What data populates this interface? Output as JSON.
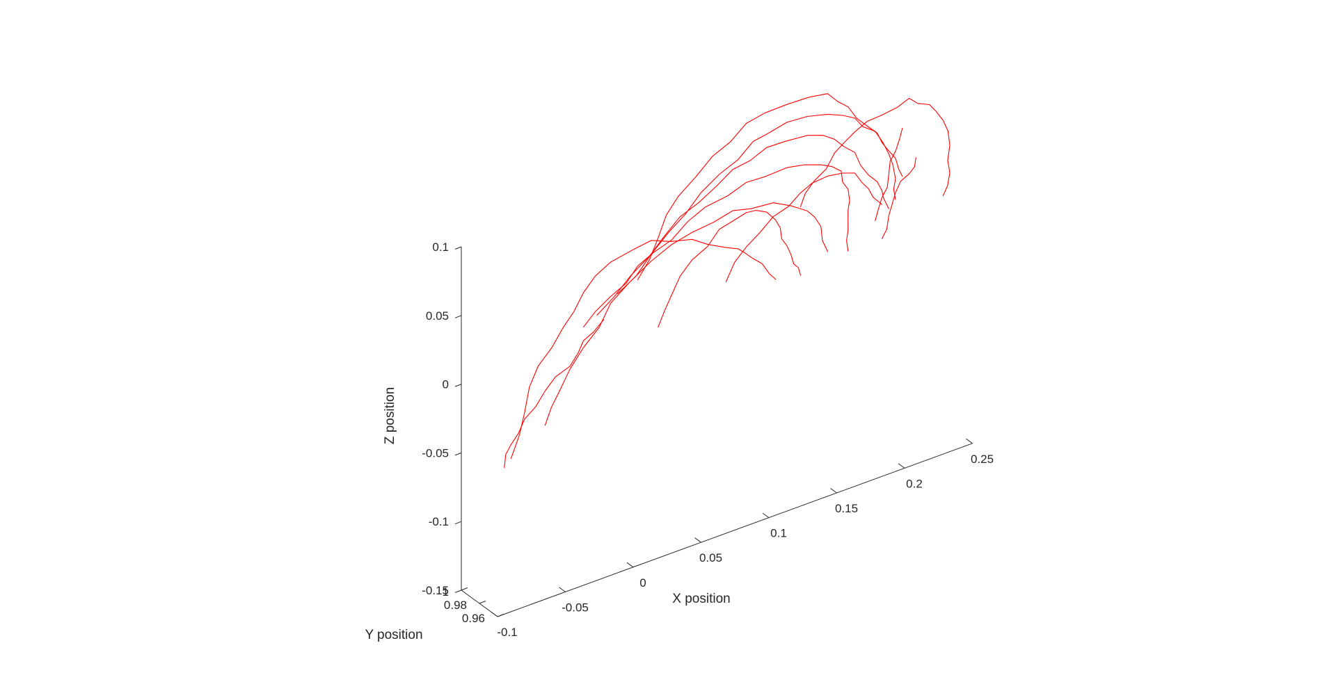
{
  "chart_data": {
    "type": "line",
    "projection": "3d",
    "xlabel": "X position",
    "ylabel": "Y position",
    "zlabel": "Z position",
    "x_ticks": [
      "-0.1",
      "-0.05",
      "0",
      "0.05",
      "0.1",
      "0.15",
      "0.2",
      "0.25"
    ],
    "y_ticks": [
      "1",
      "0.98",
      "0.96"
    ],
    "z_ticks": [
      "-0.15",
      "-0.1",
      "-0.05",
      "0",
      "0.05",
      "0.1"
    ],
    "xlim": [
      -0.1,
      0.25
    ],
    "ylim": [
      0.96,
      1
    ],
    "zlim": [
      -0.15,
      0.1
    ],
    "grid": false,
    "series_color": "#ff0000",
    "series": [
      {
        "points": [
          [
            -0.07,
            0.99,
            -0.06
          ],
          [
            -0.06,
            0.99,
            -0.03
          ],
          [
            -0.05,
            0.99,
            0.0
          ],
          [
            -0.035,
            0.985,
            0.025
          ],
          [
            -0.02,
            0.985,
            0.045
          ],
          [
            0.0,
            0.985,
            0.06
          ],
          [
            0.03,
            0.985,
            0.065
          ],
          [
            0.06,
            0.985,
            0.055
          ],
          [
            0.085,
            0.985,
            0.04
          ],
          [
            0.1,
            0.985,
            0.03
          ],
          [
            0.115,
            0.99,
            0.015
          ],
          [
            0.125,
            0.99,
            0.0
          ]
        ]
      },
      {
        "points": [
          [
            -0.045,
            0.99,
            -0.045
          ],
          [
            -0.035,
            0.99,
            -0.025
          ],
          [
            -0.02,
            0.985,
            0.005
          ],
          [
            0.0,
            0.985,
            0.03
          ],
          [
            0.03,
            0.985,
            0.05
          ],
          [
            0.06,
            0.985,
            0.06
          ],
          [
            0.09,
            0.985,
            0.065
          ],
          [
            0.12,
            0.985,
            0.06
          ],
          [
            0.145,
            0.985,
            0.045
          ],
          [
            0.155,
            0.985,
            0.03
          ],
          [
            0.16,
            0.985,
            0.01
          ]
        ]
      },
      {
        "points": [
          [
            -0.075,
            0.99,
            -0.065
          ],
          [
            -0.07,
            0.99,
            -0.05
          ],
          [
            -0.06,
            0.99,
            -0.035
          ],
          [
            -0.045,
            0.99,
            -0.02
          ],
          [
            -0.03,
            0.985,
            -0.005
          ],
          [
            -0.02,
            0.985,
            0.01
          ],
          [
            -0.005,
            0.985,
            0.02
          ]
        ]
      },
      {
        "points": [
          [
            -0.02,
            0.985,
            0.02
          ],
          [
            0.0,
            0.985,
            0.035
          ],
          [
            0.02,
            0.985,
            0.05
          ],
          [
            0.045,
            0.985,
            0.06
          ],
          [
            0.07,
            0.985,
            0.075
          ],
          [
            0.1,
            0.985,
            0.082
          ],
          [
            0.13,
            0.985,
            0.082
          ],
          [
            0.155,
            0.985,
            0.075
          ],
          [
            0.17,
            0.985,
            0.065
          ],
          [
            0.175,
            0.985,
            0.05
          ],
          [
            0.175,
            0.985,
            0.035
          ],
          [
            0.175,
            0.985,
            0.02
          ],
          [
            0.175,
            0.985,
            0.005
          ]
        ]
      },
      {
        "points": [
          [
            -0.01,
            0.985,
            0.025
          ],
          [
            0.015,
            0.985,
            0.045
          ],
          [
            0.04,
            0.985,
            0.065
          ],
          [
            0.065,
            0.985,
            0.08
          ],
          [
            0.09,
            0.985,
            0.095
          ],
          [
            0.115,
            0.985,
            0.102
          ],
          [
            0.145,
            0.985,
            0.1
          ],
          [
            0.165,
            0.985,
            0.09
          ],
          [
            0.18,
            0.985,
            0.075
          ],
          [
            0.19,
            0.985,
            0.055
          ],
          [
            0.2,
            0.985,
            0.04
          ],
          [
            0.205,
            0.985,
            0.025
          ]
        ]
      },
      {
        "points": [
          [
            0.005,
            0.985,
            0.035
          ],
          [
            0.03,
            0.985,
            0.055
          ],
          [
            0.055,
            0.985,
            0.075
          ],
          [
            0.08,
            0.985,
            0.095
          ],
          [
            0.105,
            0.985,
            0.11
          ],
          [
            0.13,
            0.985,
            0.115
          ],
          [
            0.16,
            0.985,
            0.11
          ],
          [
            0.18,
            0.985,
            0.1
          ],
          [
            0.195,
            0.985,
            0.085
          ],
          [
            0.205,
            0.985,
            0.065
          ],
          [
            0.21,
            0.985,
            0.045
          ],
          [
            0.21,
            0.985,
            0.03
          ]
        ]
      },
      {
        "points": [
          [
            0.02,
            0.985,
            0.04
          ],
          [
            0.035,
            0.985,
            0.065
          ],
          [
            0.05,
            0.985,
            0.09
          ],
          [
            0.075,
            0.985,
            0.11
          ],
          [
            0.1,
            0.985,
            0.125
          ],
          [
            0.13,
            0.985,
            0.128
          ],
          [
            0.16,
            0.985,
            0.125
          ],
          [
            0.175,
            0.985,
            0.11
          ],
          [
            0.19,
            0.985,
            0.09
          ],
          [
            0.2,
            0.985,
            0.075
          ],
          [
            0.21,
            0.985,
            0.06
          ],
          [
            0.215,
            0.985,
            0.045
          ]
        ]
      },
      {
        "points": [
          [
            0.035,
            0.985,
            0.0
          ],
          [
            0.045,
            0.985,
            0.02
          ],
          [
            0.06,
            0.985,
            0.04
          ],
          [
            0.08,
            0.985,
            0.055
          ],
          [
            0.1,
            0.985,
            0.06
          ],
          [
            0.115,
            0.985,
            0.055
          ],
          [
            0.125,
            0.985,
            0.04
          ],
          [
            0.13,
            0.985,
            0.025
          ],
          [
            0.135,
            0.985,
            0.01
          ],
          [
            0.14,
            0.985,
            0.0
          ]
        ]
      },
      {
        "points": [
          [
            0.085,
            0.985,
            0.015
          ],
          [
            0.1,
            0.985,
            0.035
          ],
          [
            0.12,
            0.985,
            0.05
          ],
          [
            0.14,
            0.985,
            0.06
          ],
          [
            0.16,
            0.985,
            0.065
          ],
          [
            0.18,
            0.985,
            0.06
          ],
          [
            0.19,
            0.985,
            0.045
          ],
          [
            0.2,
            0.985,
            0.03
          ]
        ]
      },
      {
        "points": [
          [
            0.14,
            0.985,
            0.05
          ],
          [
            0.15,
            0.985,
            0.065
          ],
          [
            0.165,
            0.985,
            0.08
          ],
          [
            0.18,
            0.985,
            0.09
          ],
          [
            0.2,
            0.985,
            0.095
          ],
          [
            0.22,
            0.985,
            0.1
          ],
          [
            0.235,
            0.985,
            0.09
          ],
          [
            0.245,
            0.985,
            0.075
          ],
          [
            0.25,
            0.985,
            0.055
          ],
          [
            0.25,
            0.985,
            0.035
          ],
          [
            0.245,
            0.985,
            0.02
          ]
        ]
      },
      {
        "points": [
          [
            0.195,
            0.985,
            0.02
          ],
          [
            0.2,
            0.985,
            0.035
          ],
          [
            0.205,
            0.985,
            0.05
          ],
          [
            0.21,
            0.985,
            0.065
          ],
          [
            0.215,
            0.985,
            0.08
          ]
        ]
      },
      {
        "points": [
          [
            0.2,
            0.985,
            0.005
          ],
          [
            0.205,
            0.985,
            0.02
          ],
          [
            0.21,
            0.985,
            0.035
          ],
          [
            0.22,
            0.985,
            0.045
          ],
          [
            0.225,
            0.985,
            0.055
          ]
        ]
      }
    ]
  }
}
